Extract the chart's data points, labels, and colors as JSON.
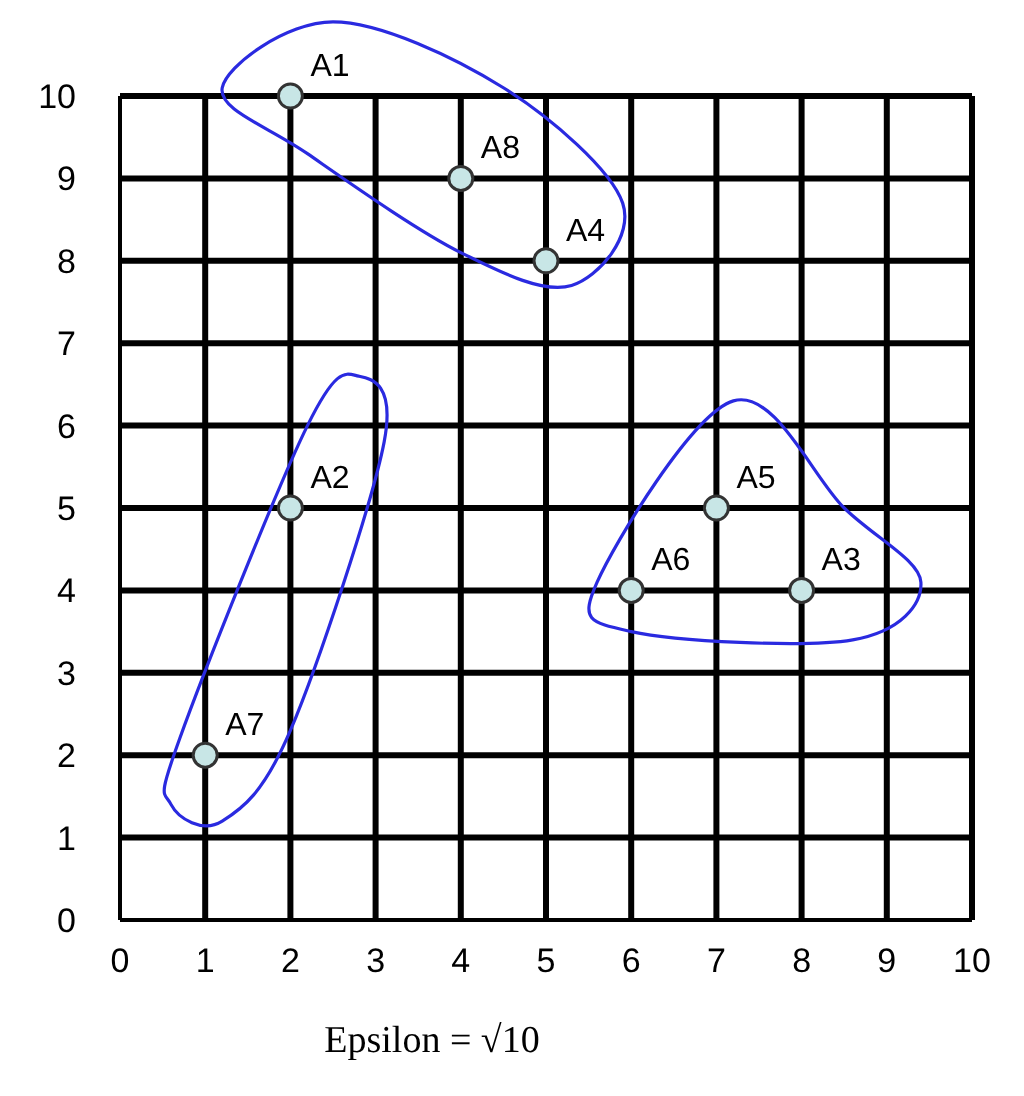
{
  "chart_data": {
    "type": "scatter",
    "x": [
      2,
      4,
      5,
      2,
      1,
      7,
      6,
      8
    ],
    "values": [
      10,
      9,
      8,
      5,
      2,
      5,
      4,
      4
    ],
    "color": "#c8e6e6",
    "marker": "circle",
    "xlim": [
      0,
      10
    ],
    "xticks": [
      0,
      1,
      2,
      3,
      4,
      5,
      6,
      7,
      8,
      9,
      10
    ],
    "ylim": [
      0,
      10
    ],
    "yticks": [
      0,
      1,
      2,
      3,
      4,
      5,
      6,
      7,
      8,
      9,
      10
    ],
    "grid": true,
    "annotations": [
      {
        "text": "A1",
        "x": 2,
        "y": 10
      },
      {
        "text": "A8",
        "x": 4,
        "y": 9
      },
      {
        "text": "A4",
        "x": 5,
        "y": 8
      },
      {
        "text": "A2",
        "x": 2,
        "y": 5
      },
      {
        "text": "A7",
        "x": 1,
        "y": 2
      },
      {
        "text": "A5",
        "x": 7,
        "y": 5
      },
      {
        "text": "A6",
        "x": 6,
        "y": 4
      },
      {
        "text": "A3",
        "x": 8,
        "y": 4
      },
      "Epsilon = √10"
    ]
  }
}
